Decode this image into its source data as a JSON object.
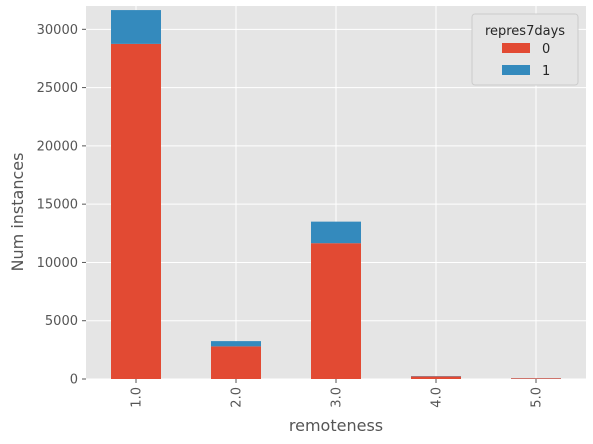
{
  "chart_data": {
    "type": "bar",
    "stacked": true,
    "xlabel": "remoteness",
    "ylabel": "Num instances",
    "categories": [
      "1.0",
      "2.0",
      "3.0",
      "4.0",
      "5.0"
    ],
    "series": [
      {
        "name": "0",
        "color": "#E24A33",
        "values": [
          28750,
          2800,
          11650,
          220,
          60
        ]
      },
      {
        "name": "1",
        "color": "#348ABD",
        "values": [
          2900,
          450,
          1850,
          30,
          10
        ]
      }
    ],
    "ylim": [
      0,
      32000
    ],
    "yticks": [
      0,
      5000,
      10000,
      15000,
      20000,
      25000,
      30000
    ],
    "grid": true,
    "legend": {
      "title": "repres7days",
      "placement": "top-right"
    },
    "background": "#E5E5E5"
  }
}
